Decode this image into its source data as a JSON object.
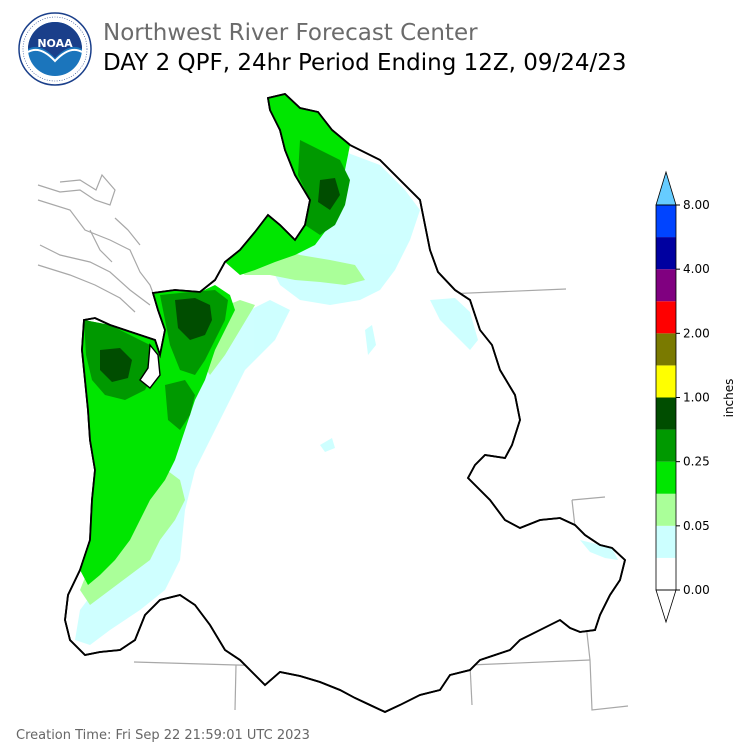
{
  "header": {
    "org": "Northwest River Forecast Center",
    "product": "DAY 2 QPF, 24hr Period Ending 12Z, 09/24/23"
  },
  "logo": {
    "icon": "noaa-logo",
    "text": "NOAA",
    "ring_text": "NATIONAL OCEANIC AND ATMOSPHERIC ADMINISTRATION · U.S. DEPARTMENT OF COMMERCE"
  },
  "legend": {
    "unit": "inches",
    "tick_labels": [
      "0.00",
      "0.05",
      "0.25",
      "1.00",
      "2.00",
      "4.00",
      "8.00"
    ],
    "colors": [
      "#ffffff",
      "#ccffff",
      "#aaff99",
      "#00e600",
      "#009900",
      "#004d00",
      "#ffff00",
      "#7a7a00",
      "#ff0000",
      "#800080",
      "#0000a0",
      "#0044ff",
      "#66ccff"
    ]
  },
  "footer": {
    "creation_time": "Creation Time: Fri Sep 22 21:59:01 UTC 2023"
  }
}
